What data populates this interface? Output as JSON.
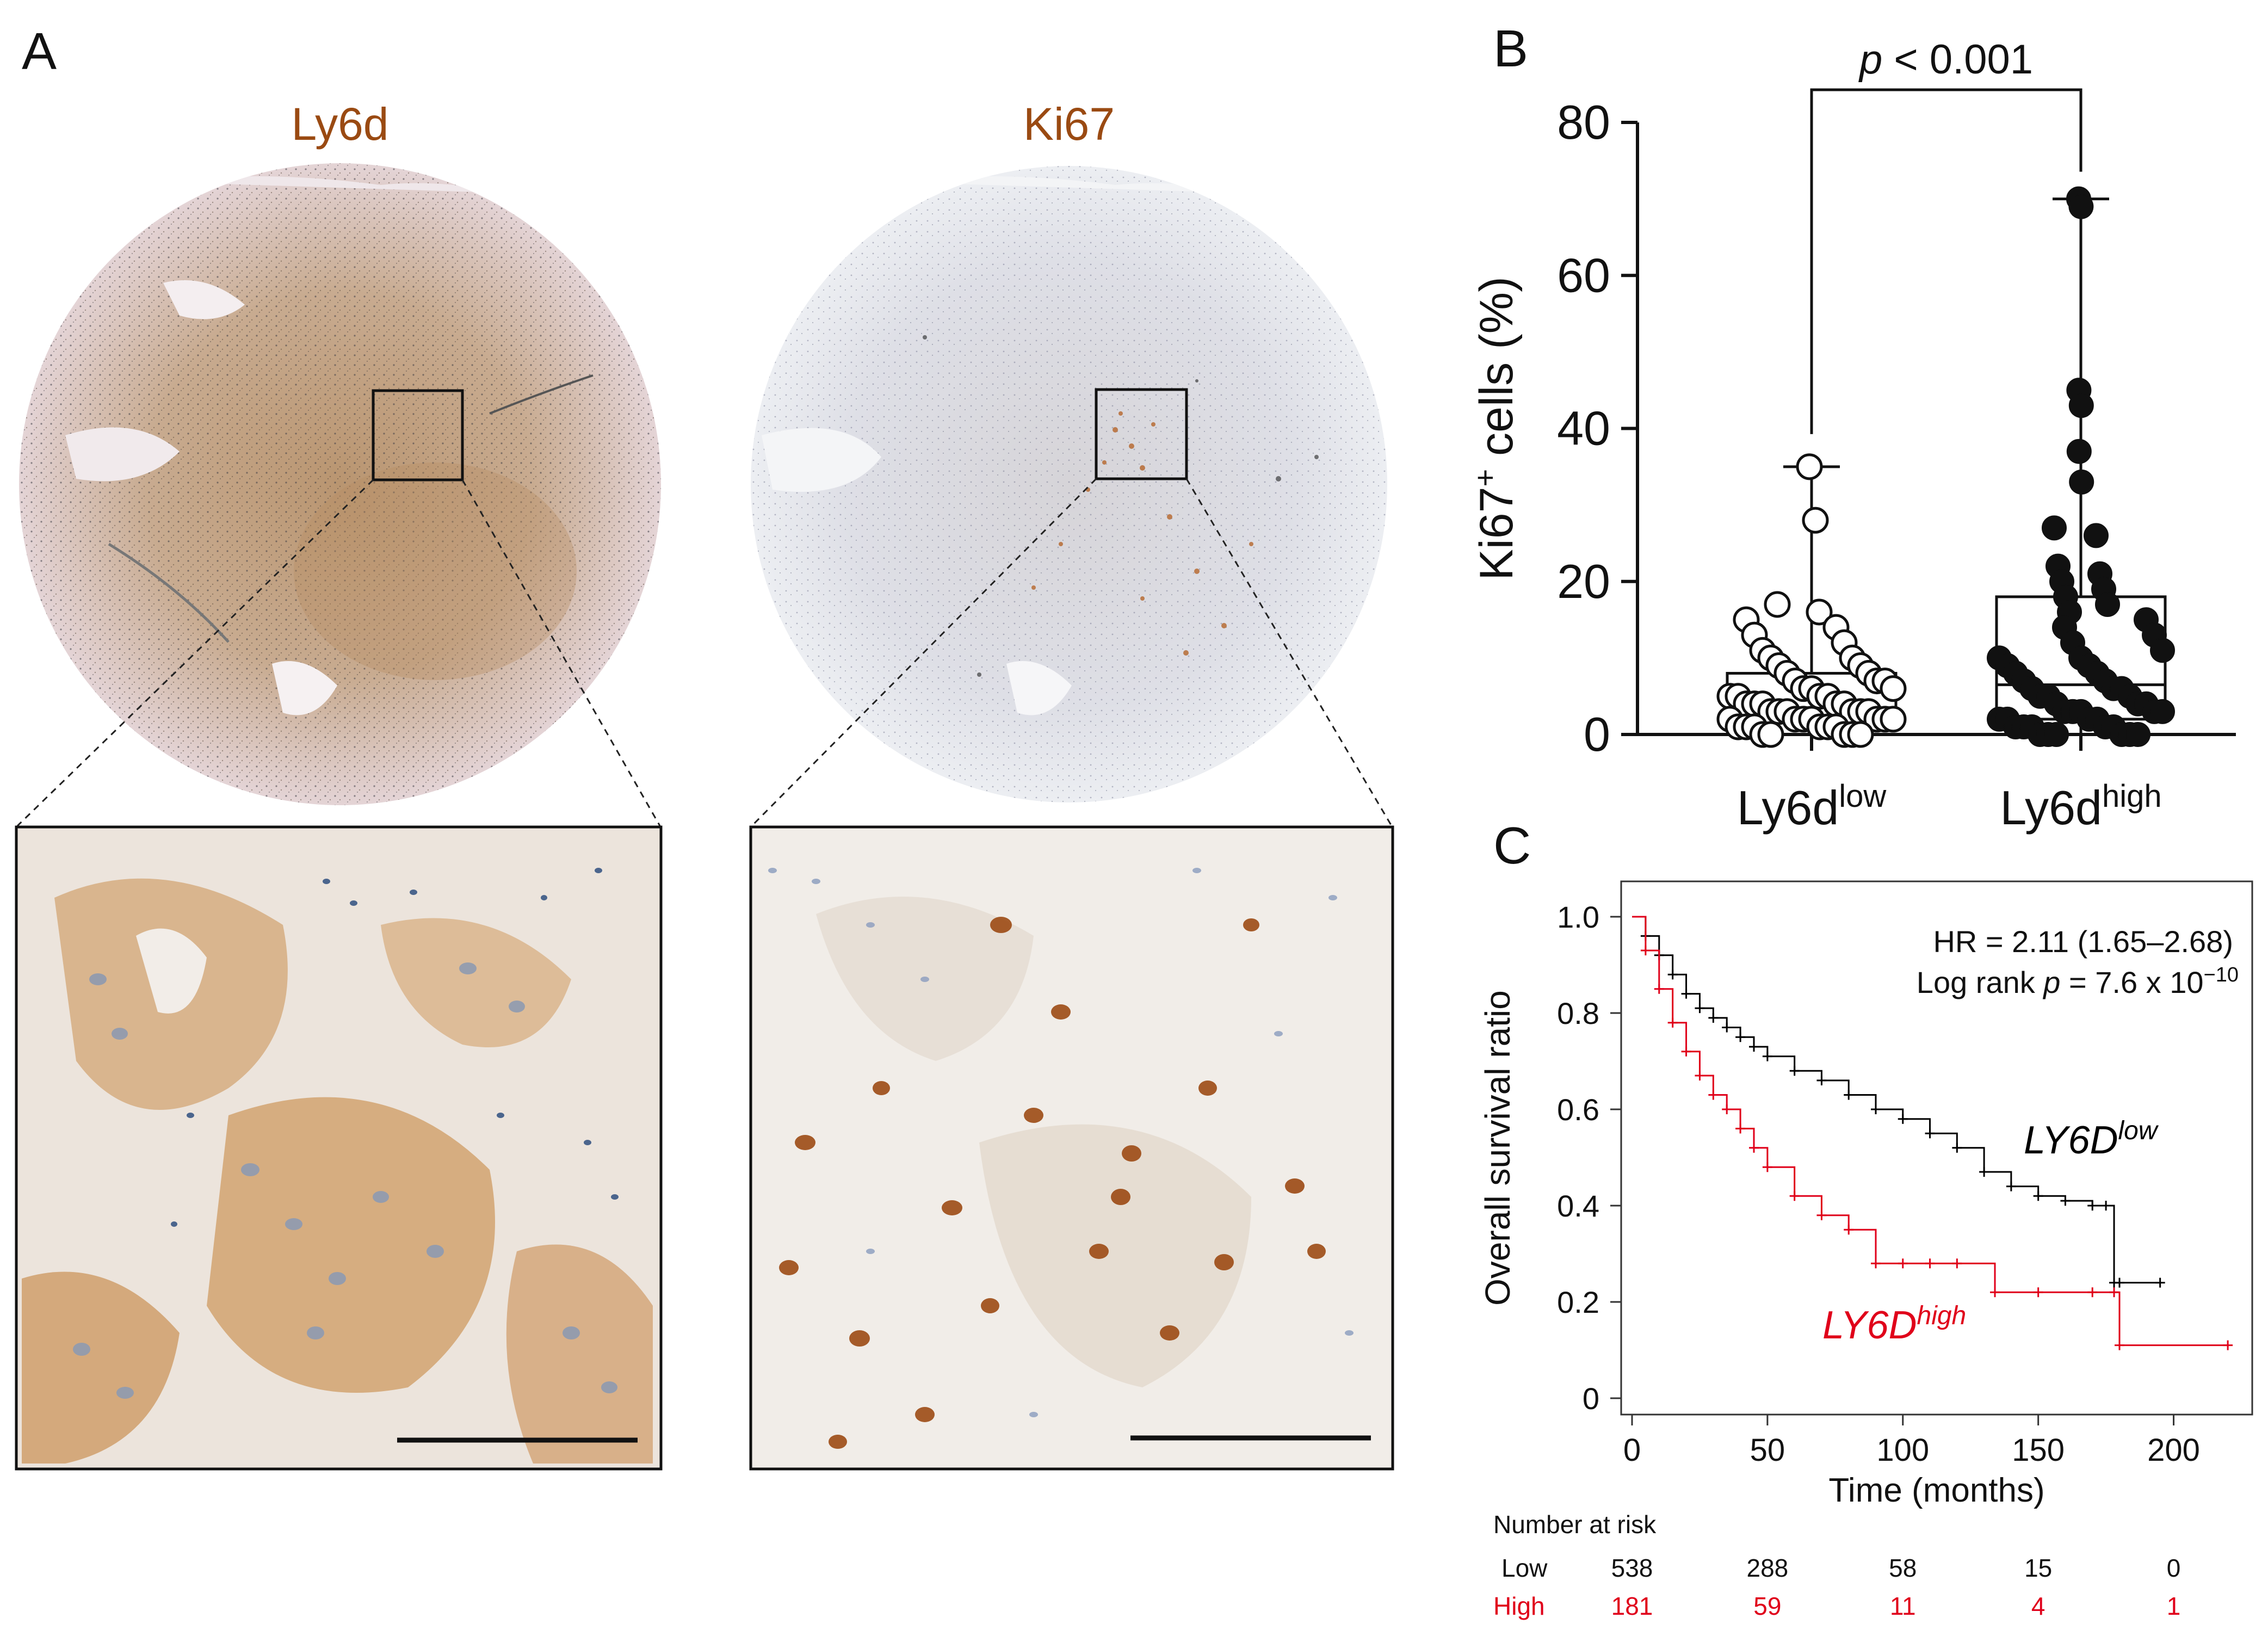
{
  "panels": {
    "a_letter": "A",
    "b_letter": "B",
    "c_letter": "C"
  },
  "panel_a": {
    "stain_left": "Ly6d",
    "stain_right": "Ki67",
    "colors": {
      "title": "#9a4a12",
      "tissue_ly6d": "#c9a27a",
      "tissue_ki67": "#dcdde6",
      "nucleus_brown": "#8b4513",
      "nucleus_blue": "#2f4f7f"
    }
  },
  "chart_data": [
    {
      "type": "box",
      "panel": "B",
      "ylabel_main": "Ki67",
      "ylabel_sup": "+",
      "ylabel_rest": " cells (%)",
      "ylim": [
        0,
        80
      ],
      "yticks": [
        "0",
        "20",
        "40",
        "60",
        "80"
      ],
      "categories": [
        {
          "label": "Ly6d",
          "sup": "low",
          "marker": "open"
        },
        {
          "label": "Ly6d",
          "sup": "high",
          "marker": "filled"
        }
      ],
      "boxes": [
        {
          "min": 0,
          "q1": 2.5,
          "median": 3.5,
          "q3": 8.0,
          "max": 35
        },
        {
          "min": 0,
          "q1": 2.0,
          "median": 6.5,
          "q3": 18.0,
          "max": 70
        }
      ],
      "points": [
        [
          35,
          28,
          17,
          16,
          15,
          14,
          13,
          12,
          11,
          10,
          10,
          9,
          9,
          8,
          8,
          7,
          7,
          7,
          6,
          6,
          6,
          5,
          5,
          5,
          5,
          4,
          4,
          4,
          4,
          4,
          3,
          3,
          3,
          3,
          3,
          3,
          2,
          2,
          2,
          2,
          2,
          2,
          2,
          1,
          1,
          1,
          1,
          1,
          1,
          0,
          0,
          0,
          0,
          0
        ],
        [
          70,
          69,
          45,
          43,
          37,
          33,
          27,
          26,
          22,
          21,
          20,
          19,
          18,
          17,
          16,
          15,
          14,
          13,
          12,
          11,
          10,
          10,
          9,
          9,
          8,
          8,
          7,
          7,
          6,
          6,
          6,
          5,
          5,
          5,
          4,
          4,
          4,
          3,
          3,
          3,
          3,
          3,
          2,
          2,
          2,
          2,
          1,
          1,
          1,
          1,
          1,
          0,
          0,
          0,
          0,
          0,
          0
        ]
      ],
      "significance": {
        "p_italic": "p",
        "p_rest": " < 0.001"
      }
    },
    {
      "type": "line",
      "panel": "C",
      "xlabel": "Time (months)",
      "ylabel": "Overall survival ratio",
      "xlim": [
        0,
        225
      ],
      "ylim": [
        0,
        1.0
      ],
      "xticks": [
        "0",
        "50",
        "100",
        "150",
        "200"
      ],
      "yticks": [
        "0",
        "0.2",
        "0.4",
        "0.6",
        "0.8",
        "1.0"
      ],
      "annotations": {
        "hr": "HR = 2.11 (1.65–2.68)",
        "logrank_prefix": "Log rank ",
        "logrank_p": "p",
        "logrank_suffix": " = 7.6 x 10",
        "logrank_exp": "−10"
      },
      "series": [
        {
          "name": "LY6D",
          "sup": "low",
          "color": "#000000",
          "x": [
            0,
            5,
            10,
            15,
            20,
            25,
            30,
            35,
            40,
            45,
            50,
            60,
            70,
            80,
            90,
            100,
            110,
            120,
            130,
            140,
            150,
            160,
            170,
            175,
            178,
            180,
            195
          ],
          "y": [
            1.0,
            0.96,
            0.92,
            0.88,
            0.84,
            0.81,
            0.79,
            0.77,
            0.75,
            0.73,
            0.71,
            0.68,
            0.66,
            0.63,
            0.6,
            0.58,
            0.55,
            0.52,
            0.47,
            0.44,
            0.42,
            0.41,
            0.4,
            0.4,
            0.24,
            0.24,
            0.24
          ]
        },
        {
          "name": "LY6D",
          "sup": "high",
          "color": "#e0001a",
          "x": [
            0,
            5,
            10,
            15,
            20,
            25,
            30,
            35,
            40,
            45,
            50,
            60,
            70,
            80,
            90,
            100,
            110,
            120,
            134,
            150,
            170,
            178,
            180,
            220
          ],
          "y": [
            1.0,
            0.93,
            0.85,
            0.78,
            0.72,
            0.67,
            0.63,
            0.6,
            0.56,
            0.52,
            0.48,
            0.42,
            0.38,
            0.35,
            0.28,
            0.28,
            0.28,
            0.28,
            0.22,
            0.22,
            0.22,
            0.22,
            0.11,
            0.11
          ]
        }
      ],
      "risk_table": {
        "header": "Number at risk",
        "rows": [
          {
            "label": "Low",
            "values": [
              "538",
              "288",
              "58",
              "15",
              "0"
            ]
          },
          {
            "label": "High",
            "values": [
              "181",
              "59",
              "11",
              "4",
              "1"
            ]
          }
        ]
      }
    }
  ]
}
